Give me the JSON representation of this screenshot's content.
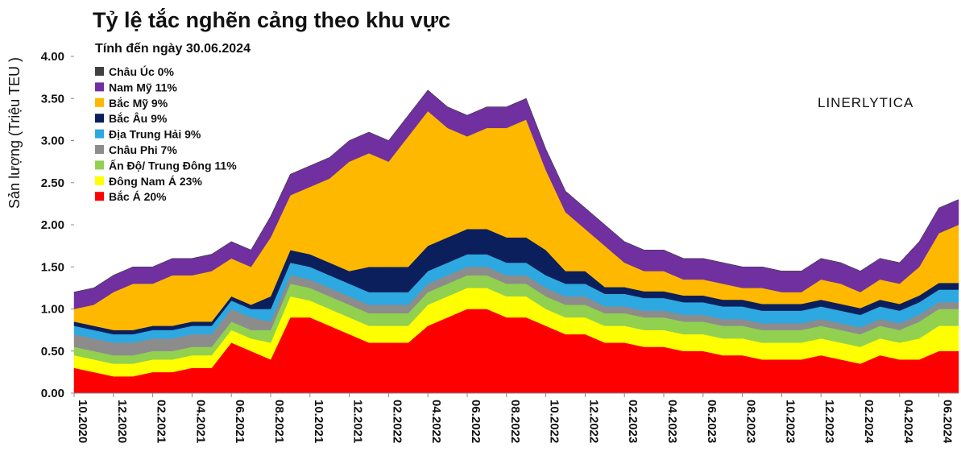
{
  "chart_data": {
    "type": "stacked_area",
    "title": "Tỷ lệ tắc nghẽn cảng theo khu vực",
    "subtitle": "Tính đến ngày 30.06.2024",
    "ylabel": "Sản lượng (Triệu TEU )",
    "annotation": "LINERLYTICA",
    "categories": [
      "10.2020",
      null,
      "12.2020",
      null,
      "02.2021",
      null,
      "04.2021",
      null,
      "06.2021",
      null,
      "08.2021",
      null,
      "10.2021",
      null,
      "12.2021",
      null,
      "02.2022",
      null,
      "04.2022",
      null,
      "06.2022",
      null,
      "08.2022",
      null,
      "10.2022",
      null,
      "12.2022",
      null,
      "02.2023",
      null,
      "04.2023",
      null,
      "06.2023",
      null,
      "08.2023",
      null,
      "10.2023",
      null,
      "12.2023",
      null,
      "02.2024",
      null,
      "04.2024",
      null,
      "06.2024",
      null
    ],
    "ylim": [
      0,
      4
    ],
    "yticks": [
      {
        "value": 0,
        "label": "0.00"
      },
      {
        "value": 0.5,
        "label": "0.50"
      },
      {
        "value": 1,
        "label": "1.00"
      },
      {
        "value": 1.5,
        "label": "1.50"
      },
      {
        "value": 2,
        "label": "2.00"
      },
      {
        "value": 2.5,
        "label": "2.50"
      },
      {
        "value": 3,
        "label": "3.00"
      },
      {
        "value": 3.5,
        "label": "3.50"
      },
      {
        "value": 4,
        "label": "4.00"
      }
    ],
    "series": [
      {
        "name": "Bắc Á 20%",
        "color": "#ff0000",
        "values": [
          0.3,
          0.25,
          0.2,
          0.2,
          0.25,
          0.25,
          0.3,
          0.3,
          0.6,
          0.5,
          0.4,
          0.9,
          0.9,
          0.8,
          0.7,
          0.6,
          0.6,
          0.6,
          0.8,
          0.9,
          1.0,
          1.0,
          0.9,
          0.9,
          0.8,
          0.7,
          0.7,
          0.6,
          0.6,
          0.55,
          0.55,
          0.5,
          0.5,
          0.45,
          0.45,
          0.4,
          0.4,
          0.4,
          0.45,
          0.4,
          0.35,
          0.45,
          0.4,
          0.4,
          0.5,
          0.5
        ]
      },
      {
        "name": "Đông Nam Á 23%",
        "color": "#ffff00",
        "values": [
          0.15,
          0.15,
          0.15,
          0.15,
          0.15,
          0.15,
          0.15,
          0.15,
          0.15,
          0.15,
          0.2,
          0.25,
          0.2,
          0.2,
          0.2,
          0.2,
          0.2,
          0.2,
          0.25,
          0.25,
          0.25,
          0.25,
          0.25,
          0.25,
          0.2,
          0.2,
          0.2,
          0.2,
          0.2,
          0.2,
          0.2,
          0.2,
          0.2,
          0.2,
          0.2,
          0.2,
          0.2,
          0.2,
          0.2,
          0.2,
          0.2,
          0.2,
          0.2,
          0.25,
          0.3,
          0.3
        ]
      },
      {
        "name": "Ấn Độ/ Trung Đông 11%",
        "color": "#92d050",
        "values": [
          0.1,
          0.1,
          0.1,
          0.1,
          0.1,
          0.1,
          0.1,
          0.1,
          0.1,
          0.1,
          0.15,
          0.15,
          0.15,
          0.15,
          0.15,
          0.15,
          0.15,
          0.15,
          0.15,
          0.15,
          0.15,
          0.15,
          0.15,
          0.15,
          0.15,
          0.15,
          0.15,
          0.15,
          0.15,
          0.15,
          0.15,
          0.15,
          0.15,
          0.15,
          0.15,
          0.15,
          0.15,
          0.15,
          0.15,
          0.15,
          0.15,
          0.15,
          0.15,
          0.2,
          0.2,
          0.2
        ]
      },
      {
        "name": "Châu Phi 7%",
        "color": "#8c8c8c",
        "values": [
          0.15,
          0.15,
          0.15,
          0.15,
          0.15,
          0.15,
          0.15,
          0.15,
          0.15,
          0.15,
          0.1,
          0.1,
          0.1,
          0.1,
          0.1,
          0.1,
          0.1,
          0.1,
          0.1,
          0.1,
          0.1,
          0.1,
          0.1,
          0.1,
          0.1,
          0.1,
          0.1,
          0.08,
          0.08,
          0.08,
          0.08,
          0.08,
          0.08,
          0.08,
          0.08,
          0.08,
          0.08,
          0.08,
          0.08,
          0.08,
          0.08,
          0.08,
          0.08,
          0.08,
          0.08,
          0.08
        ]
      },
      {
        "name": "Địa Trung Hải 9%",
        "color": "#2ea8e0",
        "values": [
          0.1,
          0.1,
          0.1,
          0.1,
          0.1,
          0.1,
          0.1,
          0.1,
          0.1,
          0.1,
          0.15,
          0.15,
          0.15,
          0.15,
          0.15,
          0.15,
          0.15,
          0.15,
          0.15,
          0.15,
          0.15,
          0.15,
          0.15,
          0.15,
          0.15,
          0.15,
          0.15,
          0.15,
          0.15,
          0.15,
          0.15,
          0.15,
          0.15,
          0.15,
          0.15,
          0.15,
          0.15,
          0.15,
          0.15,
          0.15,
          0.15,
          0.15,
          0.15,
          0.15,
          0.15,
          0.15
        ]
      },
      {
        "name": "Bắc Âu 9%",
        "color": "#0a1f5c",
        "values": [
          0.05,
          0.05,
          0.05,
          0.05,
          0.05,
          0.05,
          0.05,
          0.05,
          0.05,
          0.05,
          0.15,
          0.15,
          0.15,
          0.15,
          0.15,
          0.3,
          0.3,
          0.3,
          0.3,
          0.3,
          0.3,
          0.3,
          0.3,
          0.3,
          0.3,
          0.15,
          0.15,
          0.08,
          0.08,
          0.08,
          0.08,
          0.08,
          0.08,
          0.08,
          0.08,
          0.08,
          0.08,
          0.08,
          0.08,
          0.08,
          0.08,
          0.08,
          0.08,
          0.08,
          0.08,
          0.08
        ]
      },
      {
        "name": "Bắc Mỹ 9%",
        "color": "#ffb800",
        "values": [
          0.15,
          0.25,
          0.45,
          0.55,
          0.5,
          0.6,
          0.55,
          0.6,
          0.45,
          0.45,
          0.7,
          0.65,
          0.8,
          1.0,
          1.3,
          1.35,
          1.25,
          1.55,
          1.6,
          1.3,
          1.1,
          1.2,
          1.3,
          1.4,
          0.95,
          0.7,
          0.5,
          0.49,
          0.29,
          0.24,
          0.24,
          0.19,
          0.19,
          0.19,
          0.14,
          0.19,
          0.14,
          0.14,
          0.24,
          0.24,
          0.19,
          0.24,
          0.24,
          0.34,
          0.59,
          0.69
        ]
      },
      {
        "name": "Nam Mỹ 11%",
        "color": "#7030a0",
        "values": [
          0.2,
          0.2,
          0.2,
          0.2,
          0.2,
          0.2,
          0.2,
          0.2,
          0.2,
          0.2,
          0.25,
          0.25,
          0.25,
          0.25,
          0.25,
          0.25,
          0.25,
          0.25,
          0.25,
          0.25,
          0.25,
          0.25,
          0.25,
          0.25,
          0.25,
          0.25,
          0.25,
          0.25,
          0.25,
          0.25,
          0.25,
          0.25,
          0.25,
          0.25,
          0.25,
          0.25,
          0.25,
          0.25,
          0.25,
          0.25,
          0.25,
          0.25,
          0.25,
          0.3,
          0.3,
          0.3
        ]
      },
      {
        "name": "Châu Úc 0%",
        "color": "#404040",
        "values": [
          0,
          0,
          0,
          0,
          0,
          0,
          0,
          0,
          0,
          0,
          0,
          0,
          0,
          0,
          0,
          0,
          0,
          0,
          0,
          0,
          0,
          0,
          0,
          0,
          0,
          0,
          0,
          0,
          0,
          0,
          0,
          0,
          0,
          0,
          0,
          0,
          0,
          0,
          0,
          0,
          0,
          0,
          0,
          0,
          0,
          0
        ]
      }
    ]
  }
}
